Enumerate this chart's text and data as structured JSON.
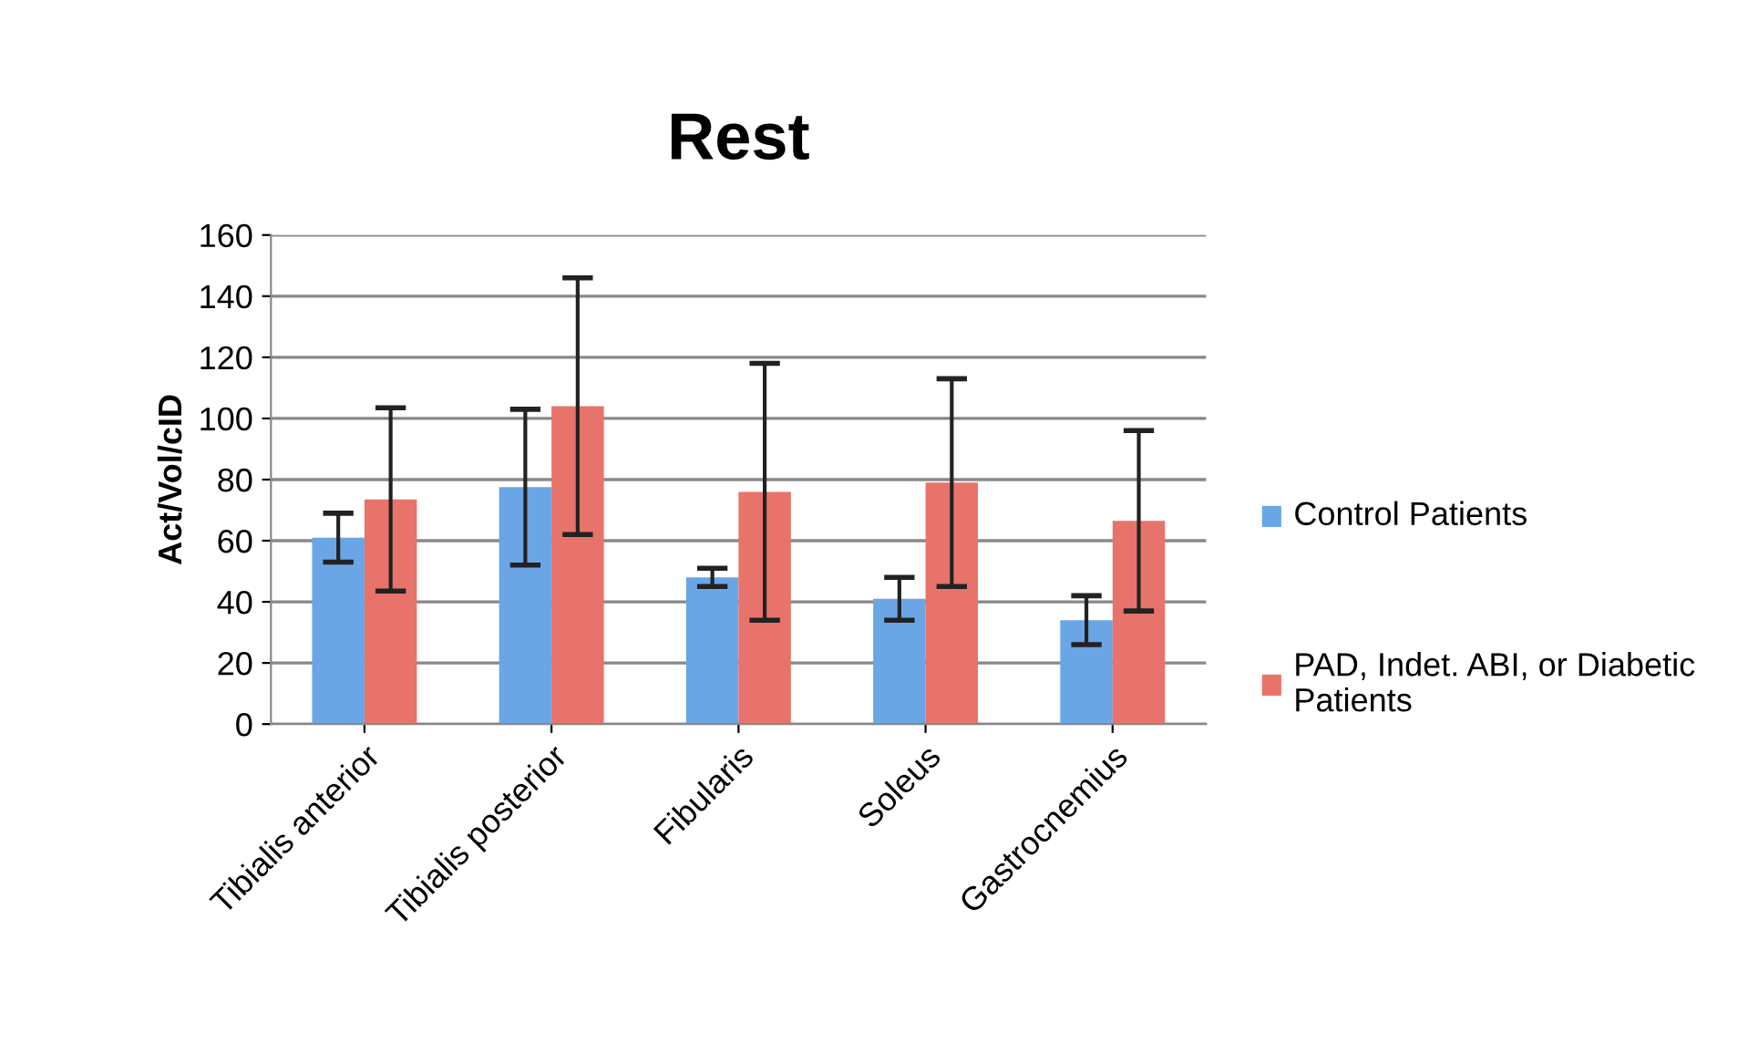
{
  "chart_data": {
    "type": "bar",
    "title": "Rest",
    "ylabel": "Act/Vol/cID",
    "categories": [
      "Tibialis anterior",
      "Tibialis posterior",
      "Fibularis",
      "Soleus",
      "Gastrocnemius"
    ],
    "series": [
      {
        "name": "Control Patients",
        "color": "#6aa5e6",
        "values": [
          61,
          77.5,
          48,
          41,
          34
        ],
        "errors": [
          8,
          25.5,
          3,
          7,
          8
        ]
      },
      {
        "name": "PAD, Indet. ABI, or Diabetic Patients",
        "color": "#e8736a",
        "values": [
          73.5,
          104,
          76,
          79,
          66.5
        ],
        "errors": [
          30,
          42,
          42,
          34,
          29.5
        ]
      }
    ],
    "ylim": [
      0,
      160
    ],
    "yticks": [
      0,
      20,
      40,
      60,
      80,
      100,
      120,
      140,
      160
    ],
    "grid": "y",
    "legend": "right"
  }
}
